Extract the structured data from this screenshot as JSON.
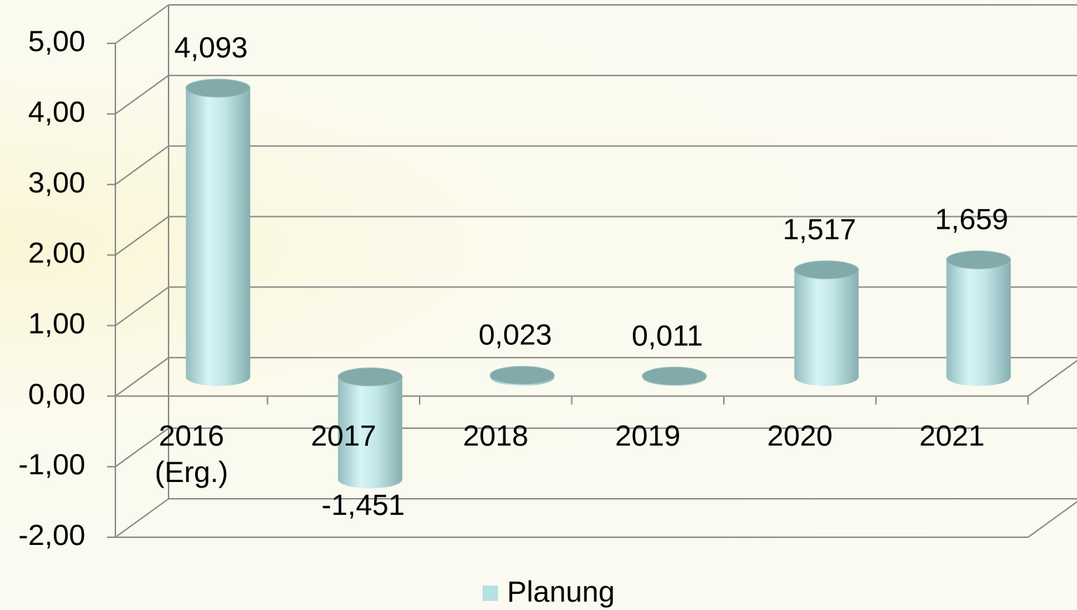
{
  "chart_data": {
    "type": "bar3d",
    "categories": [
      "2016\n(Erg.)",
      "2017",
      "2018",
      "2019",
      "2020",
      "2021"
    ],
    "series": [
      {
        "name": "Planung",
        "color": "#b7e0e3",
        "values": [
          4.093,
          -1.451,
          0.023,
          0.011,
          1.517,
          1.659
        ],
        "value_labels": [
          "4,093",
          "-1,451",
          "0,023",
          "0,011",
          "1,517",
          "1,659"
        ]
      }
    ],
    "ylim": [
      -2,
      5
    ],
    "yticks": [
      {
        "value": -2,
        "label": "-2,00"
      },
      {
        "value": -1,
        "label": "-1,00"
      },
      {
        "value": 0,
        "label": "0,00"
      },
      {
        "value": 1,
        "label": "1,00"
      },
      {
        "value": 2,
        "label": "2,00"
      },
      {
        "value": 3,
        "label": "3,00"
      },
      {
        "value": 4,
        "label": "4,00"
      },
      {
        "value": 5,
        "label": "5,00"
      }
    ],
    "grid": true,
    "legend": "bottom"
  }
}
